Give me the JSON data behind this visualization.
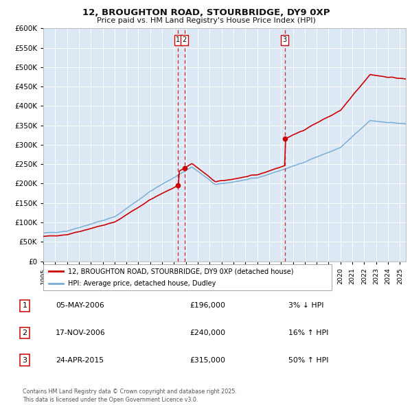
{
  "title": "12, BROUGHTON ROAD, STOURBRIDGE, DY9 0XP",
  "subtitle": "Price paid vs. HM Land Registry's House Price Index (HPI)",
  "ylim": [
    0,
    600000
  ],
  "yticks": [
    0,
    50000,
    100000,
    150000,
    200000,
    250000,
    300000,
    350000,
    400000,
    450000,
    500000,
    550000,
    600000
  ],
  "xlim_start": 1995.0,
  "xlim_end": 2025.5,
  "legend_line1": "12, BROUGHTON ROAD, STOURBRIDGE, DY9 0XP (detached house)",
  "legend_line2": "HPI: Average price, detached house, Dudley",
  "red_color": "#cc0000",
  "blue_color": "#7aaed6",
  "bg_color": "#dde8f5",
  "grid_color": "#ffffff",
  "transaction1_date": 2006.34,
  "transaction1_price": 196000,
  "transaction2_date": 2006.88,
  "transaction2_price": 240000,
  "transaction3_date": 2015.32,
  "transaction3_price": 315000,
  "table_rows": [
    {
      "num": "1",
      "date": "05-MAY-2006",
      "price": "£196,000",
      "change": "3% ↓ HPI"
    },
    {
      "num": "2",
      "date": "17-NOV-2006",
      "price": "£240,000",
      "change": "16% ↑ HPI"
    },
    {
      "num": "3",
      "date": "24-APR-2015",
      "price": "£315,000",
      "change": "50% ↑ HPI"
    }
  ],
  "footer": "Contains HM Land Registry data © Crown copyright and database right 2025.\nThis data is licensed under the Open Government Licence v3.0."
}
